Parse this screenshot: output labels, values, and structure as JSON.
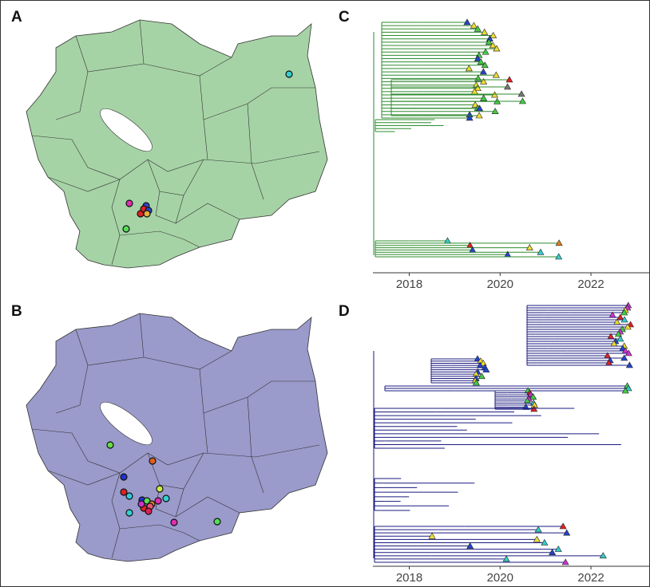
{
  "panels": [
    {
      "label": "A"
    },
    {
      "label": "B"
    },
    {
      "label": "C",
      "xlim": [
        2017.2,
        2023.3
      ],
      "xticks": [
        2018,
        2020,
        2022
      ]
    },
    {
      "label": "D",
      "xlim": [
        2017.2,
        2023.3
      ],
      "xticks": [
        2018,
        2020,
        2022
      ]
    }
  ]
}
